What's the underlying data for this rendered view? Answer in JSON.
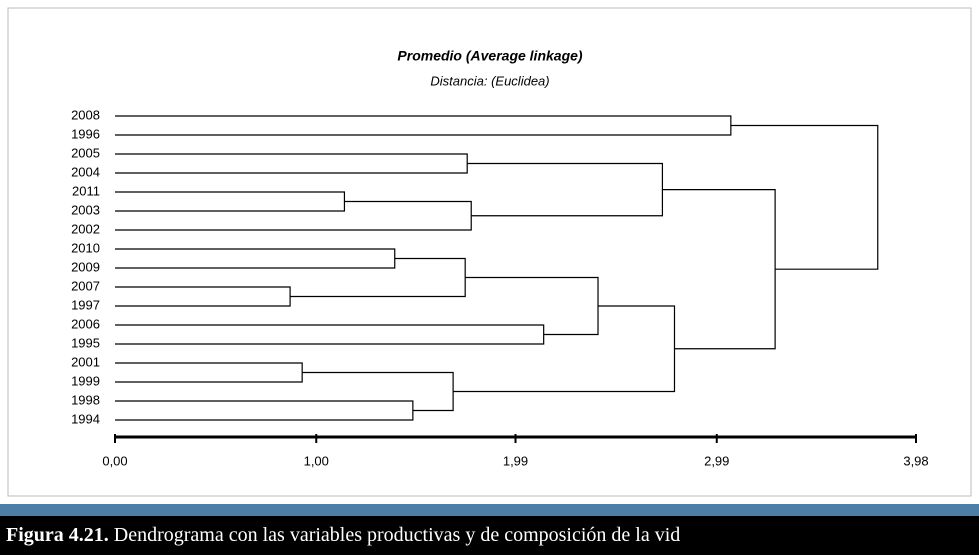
{
  "chart_data": {
    "type": "dendrogram",
    "title": "Promedio (Average linkage)",
    "subtitle": "Distancia: (Euclidea)",
    "leaves": [
      "2008",
      "1996",
      "2005",
      "2004",
      "2011",
      "2003",
      "2002",
      "2010",
      "2009",
      "2007",
      "1997",
      "2006",
      "1995",
      "2001",
      "1999",
      "1998",
      "1994"
    ],
    "merges": [
      {
        "children": [
          0,
          1
        ],
        "height": 3.06
      },
      {
        "children": [
          2,
          3
        ],
        "height": 1.75
      },
      {
        "children": [
          4,
          5
        ],
        "height": 1.14
      },
      {
        "children": [
          19,
          6
        ],
        "height": 1.77
      },
      {
        "children": [
          18,
          20
        ],
        "height": 2.72
      },
      {
        "children": [
          7,
          8
        ],
        "height": 1.39
      },
      {
        "children": [
          9,
          10
        ],
        "height": 0.87
      },
      {
        "children": [
          22,
          23
        ],
        "height": 1.74
      },
      {
        "children": [
          11,
          12
        ],
        "height": 2.13
      },
      {
        "children": [
          24,
          25
        ],
        "height": 2.4
      },
      {
        "children": [
          13,
          14
        ],
        "height": 0.93
      },
      {
        "children": [
          15,
          16
        ],
        "height": 1.48
      },
      {
        "children": [
          27,
          28
        ],
        "height": 1.68
      },
      {
        "children": [
          26,
          29
        ],
        "height": 2.78
      },
      {
        "children": [
          21,
          30
        ],
        "height": 3.28
      },
      {
        "children": [
          17,
          31
        ],
        "height": 3.79
      }
    ],
    "xlim": [
      0,
      3.98
    ],
    "xticks": [
      {
        "value": 0,
        "label": "0,00"
      },
      {
        "value": 1.0,
        "label": "1,00"
      },
      {
        "value": 1.99,
        "label": "1,99"
      },
      {
        "value": 2.99,
        "label": "2,99"
      },
      {
        "value": 3.98,
        "label": "3,98"
      }
    ],
    "color": "#000000"
  },
  "caption": {
    "label": "Figura 4.21.",
    "text": "Dendrograma con las variables productivas y de composición de la vid"
  }
}
